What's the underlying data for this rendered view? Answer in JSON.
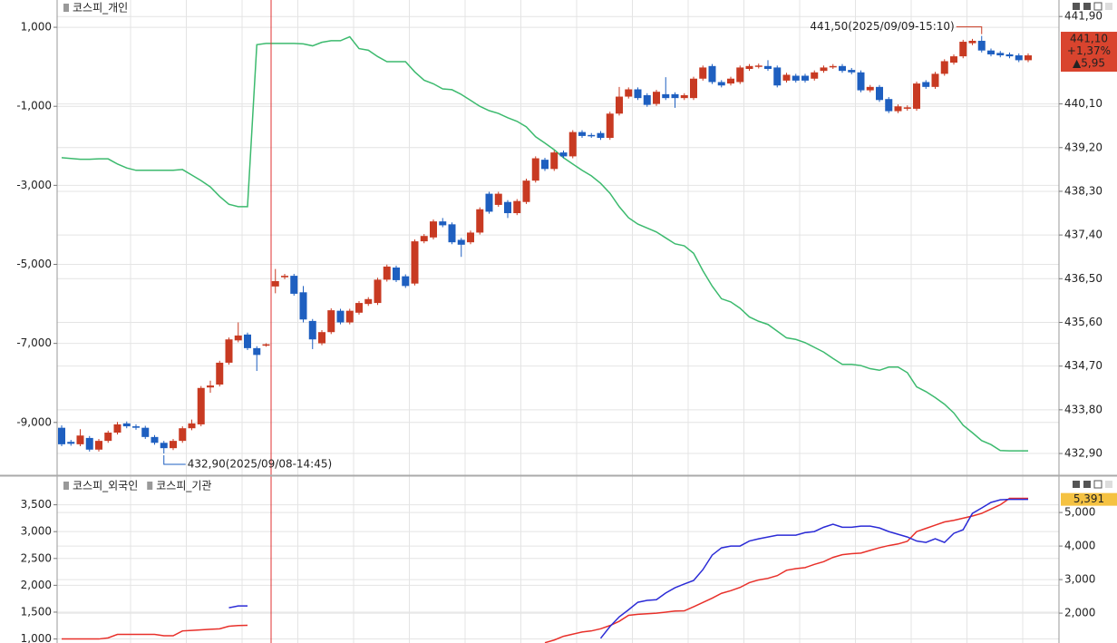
{
  "chart_data": [
    {
      "type": "candlestick",
      "series": [
        {
          "name": "코스피_개인",
          "color": "#3cba6e",
          "axis": "y",
          "values": [
            -2300,
            -2320,
            -2340,
            -2340,
            -2330,
            -2330,
            -2460,
            -2560,
            -2620,
            -2620,
            -2620,
            -2620,
            -2620,
            -2600,
            -2740,
            -2880,
            -3040,
            -3280,
            -3480,
            -3540,
            -3540,
            560,
            590,
            590,
            590,
            590,
            580,
            530,
            620,
            660,
            660,
            760,
            460,
            420,
            260,
            130,
            130,
            130,
            -130,
            -340,
            -430,
            -560,
            -580,
            -700,
            -850,
            -1000,
            -1110,
            -1180,
            -1290,
            -1380,
            -1520,
            -1770,
            -1930,
            -2100,
            -2300,
            -2460,
            -2620,
            -2760,
            -2950,
            -3200,
            -3540,
            -3820,
            -3980,
            -4080,
            -4180,
            -4330,
            -4480,
            -4530,
            -4720,
            -5160,
            -5550,
            -5870,
            -5950,
            -6110,
            -6330,
            -6440,
            -6520,
            -6690,
            -6860,
            -6900,
            -6980,
            -7100,
            -7220,
            -7380,
            -7530,
            -7530,
            -7560,
            -7640,
            -7680,
            -7600,
            -7600,
            -7740,
            -8100,
            -8220,
            -8370,
            -8540,
            -8760,
            -9070,
            -9260,
            -9460,
            -9560,
            -9710,
            -9720,
            -9720,
            -9720
          ]
        }
      ],
      "ohlc": {
        "axis": "y2",
        "up_color": "#c83a22",
        "down_color": "#1e5fc0",
        "open": [
          433.43,
          433.14,
          433.09,
          433.22,
          432.98,
          433.16,
          433.33,
          433.52,
          433.46,
          433.43,
          433.24,
          433.12,
          433.01,
          433.16,
          433.42,
          433.5,
          434.26,
          434.32,
          434.77,
          435.23,
          435.35,
          435.07,
          435.12,
          436.34,
          436.53,
          436.56,
          436.22,
          435.63,
          435.17,
          435.4,
          435.84,
          435.6,
          435.8,
          435.98,
          436.0,
          436.48,
          436.73,
          436.55,
          436.4,
          437.27,
          437.35,
          437.68,
          437.62,
          437.3,
          437.25,
          437.45,
          438.25,
          438.02,
          438.08,
          437.85,
          438.08,
          438.52,
          438.95,
          438.76,
          439.1,
          439.02,
          439.52,
          439.46,
          439.5,
          439.4,
          439.9,
          440.25,
          440.4,
          440.28,
          440.1,
          440.3,
          440.3,
          440.22,
          440.22,
          440.62,
          440.88,
          440.55,
          440.52,
          440.55,
          440.82,
          440.87,
          440.88,
          440.85,
          440.58,
          440.68,
          440.68,
          440.62,
          440.78,
          440.86,
          440.88,
          440.8,
          440.75,
          440.38,
          440.45,
          440.2,
          439.95,
          440.0,
          440.0,
          440.55,
          440.45,
          440.72,
          440.95,
          441.08,
          441.35,
          441.4,
          441.2,
          441.15,
          441.12,
          441.1,
          441.0
        ],
        "high": [
          433.48,
          433.18,
          433.4,
          433.26,
          433.2,
          433.37,
          433.55,
          433.56,
          433.5,
          433.47,
          433.28,
          433.16,
          433.2,
          433.46,
          433.6,
          434.29,
          434.4,
          434.81,
          435.29,
          435.6,
          435.39,
          435.11,
          435.17,
          436.7,
          436.6,
          436.6,
          436.35,
          435.67,
          435.44,
          435.89,
          435.88,
          435.88,
          436.04,
          436.12,
          436.52,
          436.79,
          436.77,
          436.59,
          437.31,
          437.42,
          437.72,
          437.75,
          437.66,
          437.34,
          437.49,
          437.97,
          438.29,
          438.29,
          438.12,
          438.14,
          438.56,
          439.02,
          438.99,
          439.14,
          439.14,
          439.56,
          439.56,
          439.5,
          439.54,
          439.94,
          440.45,
          440.44,
          440.44,
          440.32,
          440.39,
          440.65,
          440.34,
          440.32,
          440.66,
          440.89,
          440.92,
          440.59,
          440.66,
          440.89,
          440.92,
          440.93,
          441.0,
          440.89,
          440.74,
          440.72,
          440.72,
          440.79,
          440.89,
          440.92,
          440.92,
          440.84,
          440.79,
          440.49,
          440.49,
          440.24,
          440.09,
          440.07,
          440.56,
          440.59,
          440.76,
          441.02,
          441.12,
          441.42,
          441.44,
          441.5,
          441.24,
          441.19,
          441.16,
          441.14,
          441.14
        ],
        "low": [
          433.05,
          433.06,
          433.05,
          432.94,
          432.94,
          433.12,
          433.29,
          433.42,
          433.39,
          433.2,
          433.08,
          432.9,
          432.97,
          433.12,
          433.38,
          433.46,
          434.15,
          434.28,
          434.73,
          435.19,
          435.03,
          434.6,
          435.1,
          436.2,
          436.49,
          436.15,
          435.6,
          435.05,
          435.13,
          435.36,
          435.56,
          435.56,
          435.76,
          435.94,
          435.96,
          436.44,
          436.43,
          436.31,
          436.36,
          437.23,
          437.31,
          437.56,
          437.21,
          436.95,
          437.21,
          437.41,
          437.84,
          437.98,
          437.75,
          437.81,
          438.04,
          438.48,
          438.72,
          438.72,
          438.98,
          438.98,
          439.4,
          439.4,
          439.36,
          439.36,
          439.86,
          440.21,
          440.18,
          440.04,
          440.06,
          440.18,
          440.02,
          440.18,
          440.18,
          440.58,
          440.51,
          440.44,
          440.48,
          440.51,
          440.78,
          440.83,
          440.78,
          440.44,
          440.54,
          440.54,
          440.54,
          440.58,
          440.74,
          440.82,
          440.74,
          440.71,
          440.34,
          440.34,
          440.14,
          439.91,
          439.91,
          439.96,
          439.96,
          440.41,
          440.41,
          440.68,
          440.91,
          441.04,
          441.31,
          441.16,
          441.08,
          441.06,
          441.04,
          440.96,
          440.96
        ],
        "close": [
          433.09,
          433.1,
          433.27,
          432.98,
          433.16,
          433.33,
          433.5,
          433.46,
          433.43,
          433.24,
          433.12,
          433.01,
          433.16,
          433.42,
          433.52,
          434.25,
          434.3,
          434.77,
          435.25,
          435.33,
          435.07,
          434.93,
          435.15,
          436.45,
          436.56,
          436.19,
          435.66,
          435.25,
          435.4,
          435.85,
          435.6,
          435.84,
          436.0,
          436.08,
          436.48,
          436.75,
          436.47,
          436.35,
          437.27,
          437.38,
          437.68,
          437.6,
          437.25,
          437.2,
          437.45,
          437.93,
          437.88,
          438.25,
          437.85,
          438.1,
          438.52,
          438.98,
          438.76,
          439.1,
          439.02,
          439.52,
          439.44,
          439.44,
          439.4,
          439.9,
          440.25,
          440.4,
          440.22,
          440.08,
          440.35,
          440.22,
          440.22,
          440.28,
          440.62,
          440.85,
          440.55,
          440.48,
          440.62,
          440.85,
          440.88,
          440.89,
          440.82,
          440.48,
          440.7,
          440.58,
          440.58,
          440.75,
          440.85,
          440.88,
          440.78,
          440.75,
          440.38,
          440.45,
          440.18,
          439.95,
          440.05,
          440.03,
          440.52,
          440.45,
          440.72,
          440.98,
          441.08,
          441.38,
          441.4,
          441.2,
          441.12,
          441.1,
          441.08,
          441.0,
          441.1
        ]
      },
      "ylim": [
        -10290,
        1690
      ],
      "yticks": [
        {
          "value": 1000,
          "label": "1,000"
        },
        {
          "value": -1000,
          "label": "-1,000"
        },
        {
          "value": -3000,
          "label": "-3,000"
        },
        {
          "value": -5000,
          "label": "-5,000"
        },
        {
          "value": -7000,
          "label": "-7,000"
        },
        {
          "value": -9000,
          "label": "-9,000"
        }
      ],
      "y2lim": [
        432.49,
        442.24
      ],
      "y2ticks": [
        {
          "value": 441.9,
          "label": "441,90"
        },
        {
          "value": 440.1,
          "label": "440,10"
        },
        {
          "value": 439.2,
          "label": "439,20"
        },
        {
          "value": 438.3,
          "label": "438,30"
        },
        {
          "value": 437.4,
          "label": "437,40"
        },
        {
          "value": 436.5,
          "label": "436,50"
        },
        {
          "value": 435.6,
          "label": "435,60"
        },
        {
          "value": 434.7,
          "label": "434,70"
        },
        {
          "value": 433.8,
          "label": "433,80"
        },
        {
          "value": 432.9,
          "label": "432,90"
        }
      ],
      "grid": true,
      "annotations": {
        "high": "441,50(2025/09/09-15:10)",
        "low": "432,90(2025/09/08-14:45)"
      },
      "badge": [
        "441,10",
        "+1,37%",
        "▲5,95"
      ],
      "badge_color": "#d9442e"
    },
    {
      "type": "line",
      "series": [
        {
          "name": "코스피_외국인",
          "color": "#e8302a",
          "axis": "y",
          "values": [
            1000,
            1000,
            1000,
            1000,
            1000,
            1020,
            1085,
            1085,
            1085,
            1085,
            1085,
            1060,
            1060,
            1150,
            1160,
            1170,
            1180,
            1190,
            1237,
            1250,
            1254,
            null,
            null,
            null,
            null,
            null,
            null,
            null,
            null,
            null,
            null,
            null,
            null,
            null,
            null,
            null,
            null,
            null,
            null,
            null,
            null,
            null,
            null,
            null,
            null,
            null,
            null,
            null,
            null,
            null,
            null,
            null,
            930,
            980,
            1050,
            1090,
            1130,
            1150,
            1190,
            1250,
            1330,
            1440,
            1460,
            1470,
            1480,
            1500,
            1520,
            1524,
            1600,
            1680,
            1760,
            1850,
            1900,
            1960,
            2050,
            2100,
            2130,
            2180,
            2280,
            2310,
            2330,
            2390,
            2440,
            2520,
            2570,
            2590,
            2600,
            2650,
            2700,
            2740,
            2770,
            2820,
            3000,
            3060,
            3120,
            3180,
            3210,
            3250,
            3290,
            3340,
            3420,
            3500,
            3620,
            3620,
            3620
          ]
        },
        {
          "name": "코스피_기관",
          "color": "#2b2bd6",
          "axis": "y2",
          "values": [
            null,
            null,
            null,
            null,
            null,
            null,
            null,
            null,
            null,
            null,
            null,
            null,
            null,
            null,
            null,
            null,
            null,
            null,
            2160,
            2216,
            2216,
            null,
            null,
            null,
            null,
            null,
            null,
            null,
            null,
            null,
            null,
            null,
            null,
            null,
            null,
            null,
            null,
            null,
            null,
            null,
            null,
            null,
            null,
            null,
            null,
            null,
            null,
            null,
            null,
            null,
            null,
            null,
            null,
            null,
            null,
            null,
            null,
            null,
            1250,
            1600,
            1890,
            2100,
            2324,
            2380,
            2400,
            2600,
            2757,
            2870,
            2973,
            3297,
            3730,
            3946,
            4000,
            4000,
            4150,
            4216,
            4270,
            4324,
            4324,
            4324,
            4400,
            4432,
            4560,
            4650,
            4560,
            4560,
            4595,
            4595,
            4540,
            4432,
            4350,
            4270,
            4150,
            4108,
            4216,
            4108,
            4378,
            4486,
            4973,
            5135,
            5300,
            5378,
            5391,
            5391,
            5391
          ]
        }
      ],
      "ylim": [
        925,
        4000
      ],
      "yticks": [
        {
          "value": 3500,
          "label": "3,500"
        },
        {
          "value": 3000,
          "label": "3,000"
        },
        {
          "value": 2500,
          "label": "2,500"
        },
        {
          "value": 2000,
          "label": "2,000"
        },
        {
          "value": 1500,
          "label": "1,500"
        },
        {
          "value": 1000,
          "label": "1,000"
        }
      ],
      "y2lim": [
        1110,
        6030
      ],
      "y2ticks": [
        {
          "value": 5000,
          "label": "5,000"
        },
        {
          "value": 4000,
          "label": "4,000"
        },
        {
          "value": 3000,
          "label": "3,000"
        },
        {
          "value": 2000,
          "label": "2,000"
        }
      ],
      "grid": true,
      "badge": "5,391",
      "badge_color": "#f5c242"
    }
  ]
}
